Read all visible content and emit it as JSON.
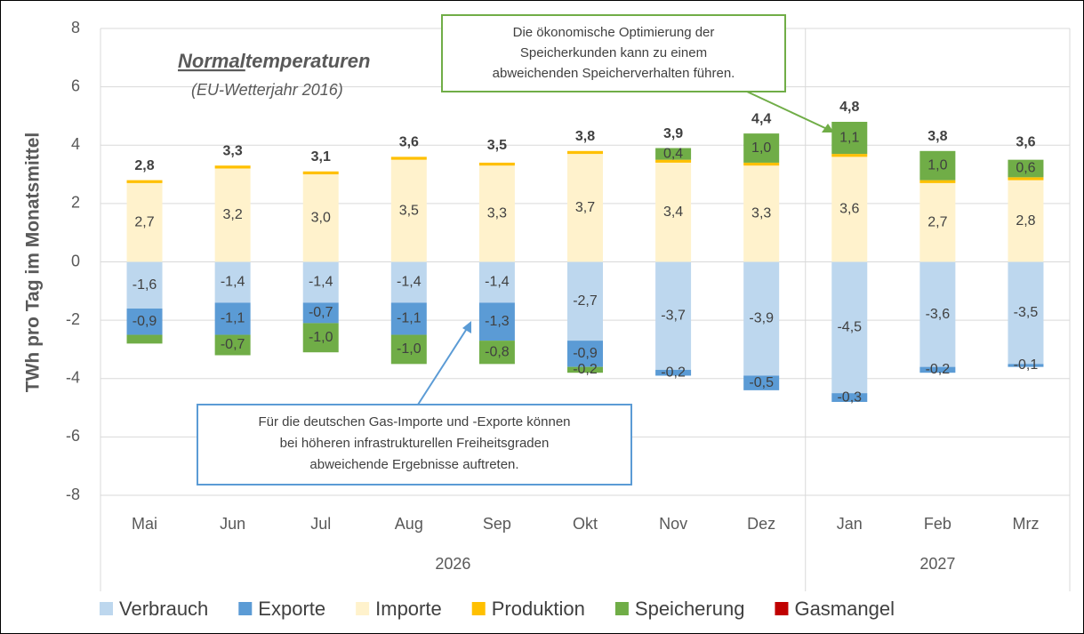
{
  "chart_data": {
    "type": "stacked_bar",
    "y_label": "TWh pro Tag im Monatsmittel",
    "heading_parts": [
      "Normal",
      "temperaturen"
    ],
    "subheading": "(EU-Wetterjahr 2016)",
    "categories": [
      "Mai",
      "Jun",
      "Jul",
      "Aug",
      "Sep",
      "Okt",
      "Nov",
      "Dez",
      "Jan",
      "Feb",
      "Mrz"
    ],
    "years": [
      "2026",
      "2026",
      "2026",
      "2026",
      "2026",
      "2026",
      "2026",
      "2026",
      "2027",
      "2027",
      "2027"
    ],
    "ylim": [
      -8,
      8
    ],
    "yticks": [
      -8,
      -6,
      -4,
      -2,
      0,
      2,
      4,
      6,
      8
    ],
    "grid": true,
    "series": [
      {
        "name": "Verbrauch",
        "color": "#bdd7ee",
        "values": [
          -1.6,
          -1.4,
          -1.4,
          -1.4,
          -1.4,
          -2.7,
          -3.7,
          -3.9,
          -4.5,
          -3.6,
          -3.5
        ],
        "value_labels": [
          "-1,6",
          "-1,4",
          "-1,4",
          "-1,4",
          "-1,4",
          "-2,7",
          "-3,7",
          "-3,9",
          "-4,5",
          "-3,6",
          "-3,5"
        ]
      },
      {
        "name": "Exporte",
        "color": "#5b9bd5",
        "values": [
          -0.9,
          -1.1,
          -0.7,
          -1.1,
          -1.3,
          -0.9,
          -0.2,
          -0.5,
          -0.3,
          -0.2,
          -0.1
        ],
        "value_labels": [
          "-0,9",
          "-1,1",
          "-0,7",
          "-1,1",
          "-1,3",
          "-0,9",
          "-0,2",
          "-0,5",
          "-0,3",
          "-0,2",
          "-0,1"
        ]
      },
      {
        "name": "Importe",
        "color": "#fff2cc",
        "values": [
          2.7,
          3.2,
          3.0,
          3.5,
          3.3,
          3.7,
          3.4,
          3.3,
          3.6,
          2.7,
          2.8
        ],
        "value_labels": [
          "2,7",
          "3,2",
          "3,0",
          "3,5",
          "3,3",
          "3,7",
          "3,4",
          "3,3",
          "3,6",
          "2,7",
          "2,8"
        ]
      },
      {
        "name": "Produktion",
        "color": "#ffc000",
        "values": [
          0.1,
          0.1,
          0.1,
          0.1,
          0.1,
          0.1,
          0.1,
          0.1,
          0.1,
          0.1,
          0.1
        ]
      },
      {
        "name": "Speicherung",
        "color": "#70ad47",
        "values": [
          -0.3,
          -0.7,
          -1.0,
          -1.0,
          -0.8,
          -0.2,
          0.4,
          1.0,
          1.1,
          1.0,
          0.6
        ],
        "value_labels": [
          null,
          "-0,7",
          "-1,0",
          "-1,0",
          "-0,8",
          "-0,2",
          "0,4",
          "1,0",
          "1,1",
          "1,0",
          "0,6"
        ]
      },
      {
        "name": "Gasmangel",
        "color": "#c00000"
      }
    ],
    "totals": [
      2.8,
      3.3,
      3.1,
      3.6,
      3.5,
      3.8,
      3.9,
      4.4,
      4.8,
      3.8,
      3.6
    ],
    "total_labels": [
      "2,8",
      "3,3",
      "3,1",
      "3,6",
      "3,5",
      "3,8",
      "3,9",
      "4,4",
      "4,8",
      "3,8",
      "3,6"
    ],
    "callout_top": [
      "Die ökonomische Optimierung der",
      "Speicherkunden kann zu einem",
      "abweichenden Speicherverhalten führen."
    ],
    "callout_bottom": [
      "Für die deutschen Gas-Importe und -Exporte können",
      "bei höheren infrastrukturellen Freiheitsgraden",
      "abweichende Ergebnisse auftreten."
    ]
  }
}
